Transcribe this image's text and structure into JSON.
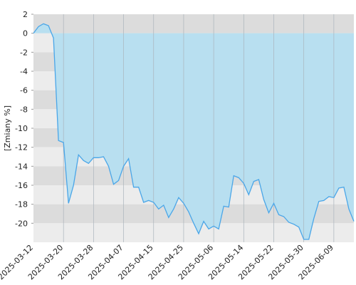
{
  "chart_data": {
    "type": "area",
    "y_label": "[Zmiany %]",
    "categories": [
      "2025-03-12",
      null,
      null,
      null,
      null,
      null,
      "2025-03-20",
      null,
      null,
      null,
      null,
      null,
      "2025-03-28",
      null,
      null,
      null,
      null,
      null,
      "2025-04-07",
      null,
      null,
      null,
      null,
      null,
      "2025-04-15",
      null,
      null,
      null,
      null,
      null,
      "2025-04-25",
      null,
      null,
      null,
      null,
      null,
      "2025-05-06",
      null,
      null,
      null,
      null,
      null,
      "2025-05-14",
      null,
      null,
      null,
      null,
      null,
      "2025-05-22",
      null,
      null,
      null,
      null,
      null,
      "2025-05-30",
      null,
      null,
      null,
      null,
      null,
      "2025-06-09",
      null,
      null,
      null,
      null
    ],
    "values": [
      0,
      0.7,
      1.0,
      0.8,
      -0.5,
      -11.3,
      -11.5,
      -17.9,
      -16,
      -12.8,
      -13.4,
      -13.7,
      -13.1,
      -13.1,
      -13.0,
      -14,
      -15.9,
      -15.5,
      -14,
      -13.2,
      -16.2,
      -16.2,
      -17.8,
      -17.6,
      -17.8,
      -18.5,
      -18.1,
      -19.4,
      -18.5,
      -17.3,
      -17.9,
      -18.8,
      -20,
      -21.1,
      -19.8,
      -20.6,
      -20.3,
      -20.6,
      -18.2,
      -18.3,
      -15,
      -15.2,
      -15.8,
      -17,
      -15.6,
      -15.4,
      -17.5,
      -18.9,
      -17.9,
      -19.1,
      -19.3,
      -19.9,
      -20.1,
      -20.4,
      -21.7,
      -21.7,
      -19.5,
      -17.7,
      -17.6,
      -17.2,
      -17.3,
      -16.3,
      -16.2,
      -18.5,
      -19.8
    ],
    "color": "#4aa6e8",
    "fill": "#b8dff0",
    "ylim": [
      -22,
      2
    ],
    "yticks": [
      2,
      0,
      -2,
      -4,
      -6,
      -8,
      -10,
      -12,
      -14,
      -16,
      -18,
      -20
    ],
    "grid": true
  }
}
